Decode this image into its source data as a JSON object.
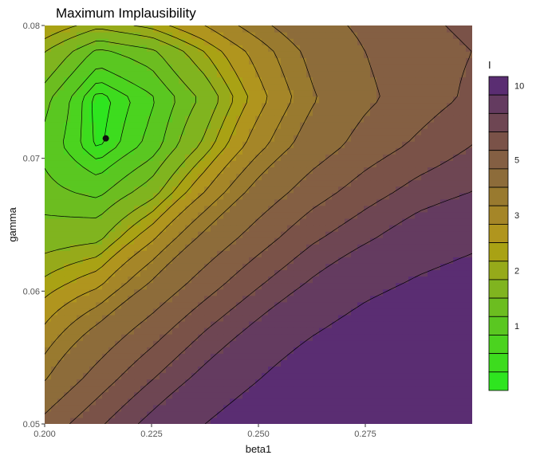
{
  "chart_data": {
    "type": "contour",
    "title": "Maximum Implausibility",
    "xlabel": "beta1",
    "ylabel": "gamma",
    "xlim": [
      0.2,
      0.3
    ],
    "ylim": [
      0.05,
      0.08
    ],
    "x_ticks": [
      {
        "value": 0.2,
        "label": "0.200"
      },
      {
        "value": 0.225,
        "label": "0.225"
      },
      {
        "value": 0.25,
        "label": "0.250"
      },
      {
        "value": 0.275,
        "label": "0.275"
      }
    ],
    "y_ticks": [
      {
        "value": 0.05,
        "label": "0.05"
      },
      {
        "value": 0.06,
        "label": "0.06"
      },
      {
        "value": 0.07,
        "label": "0.07"
      },
      {
        "value": 0.08,
        "label": "0.08"
      }
    ],
    "grid": false,
    "legend": {
      "title": "I",
      "position": "right",
      "levels": [
        0.5,
        0.65,
        0.8,
        1,
        1.3,
        1.6,
        2,
        2.3,
        2.6,
        3,
        3.5,
        4,
        5,
        6,
        7,
        8,
        10
      ],
      "colors": [
        "#2ee51f",
        "#3ddc1e",
        "#4bd31f",
        "#5ac721",
        "#6cbd20",
        "#80b41f",
        "#96aa1a",
        "#a9a214",
        "#b0951e",
        "#a58628",
        "#997a2f",
        "#8d6c3a",
        "#845f43",
        "#7a5248",
        "#6e4653",
        "#643b60",
        "#5a2d72"
      ],
      "labelled": [
        {
          "value": 10,
          "label": "10"
        },
        {
          "value": 5,
          "label": "5"
        },
        {
          "value": 3,
          "label": "3"
        },
        {
          "value": 2,
          "label": "2"
        },
        {
          "value": 1,
          "label": "1"
        }
      ]
    },
    "minimum_point": {
      "x": 0.2143,
      "y": 0.0715
    },
    "grid_x": [
      0.2,
      0.2125,
      0.225,
      0.2375,
      0.25,
      0.2625,
      0.275,
      0.2875,
      0.3
    ],
    "grid_y": [
      0.05,
      0.0535,
      0.057,
      0.0605,
      0.064,
      0.0675,
      0.071,
      0.0745,
      0.078,
      0.08
    ],
    "z": [
      [
        5.3,
        6.8,
        8.4,
        10.0,
        11.5,
        12.5,
        13.0,
        13.5,
        14.0
      ],
      [
        3.9,
        5.4,
        6.9,
        8.4,
        9.9,
        11.5,
        12.5,
        13.0,
        13.5
      ],
      [
        3.1,
        4.2,
        5.5,
        7.0,
        8.4,
        9.8,
        11.0,
        12.0,
        12.5
      ],
      [
        2.4,
        2.9,
        4.1,
        5.5,
        6.9,
        8.2,
        9.4,
        10.3,
        11.0
      ],
      [
        1.8,
        1.9,
        2.9,
        4.2,
        5.5,
        6.8,
        7.8,
        8.8,
        9.5
      ],
      [
        1.4,
        1.2,
        1.8,
        3.0,
        4.3,
        5.5,
        6.5,
        7.4,
        8.0
      ],
      [
        1.2,
        0.6,
        1.1,
        2.1,
        3.3,
        4.4,
        5.4,
        6.2,
        7.0
      ],
      [
        1.4,
        0.55,
        0.95,
        1.7,
        2.8,
        3.9,
        4.8,
        5.5,
        6.2
      ],
      [
        2.0,
        1.2,
        1.5,
        2.3,
        3.2,
        4.2,
        5.0,
        5.6,
        6.0
      ],
      [
        2.6,
        2.1,
        2.4,
        3.0,
        3.8,
        4.6,
        5.2,
        5.8,
        6.2
      ]
    ]
  }
}
